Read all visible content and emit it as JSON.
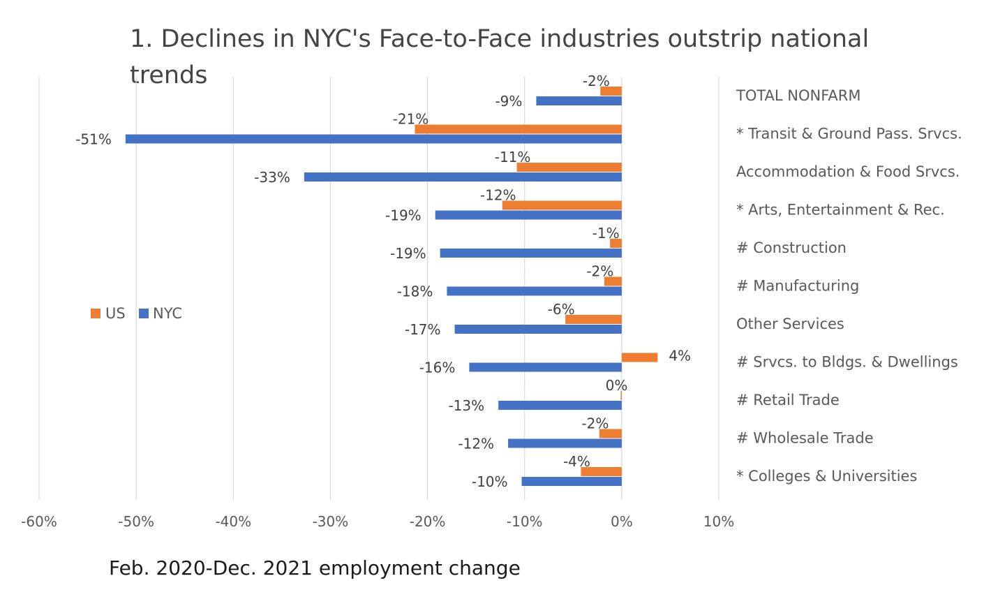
{
  "chart_data": {
    "type": "bar",
    "orientation": "horizontal",
    "title": "1. Declines in NYC's Face-to-Face industries outstrip national trends",
    "xlabel": "Feb. 2020-Dec. 2021  employment change",
    "xlim": [
      -0.6,
      0.1
    ],
    "xticks": [
      -0.6,
      -0.5,
      -0.4,
      -0.3,
      -0.2,
      -0.1,
      0,
      0.1
    ],
    "xtick_labels": [
      "-60%",
      "-50%",
      "-40%",
      "-30%",
      "-20%",
      "-10%",
      "0%",
      "10%"
    ],
    "grid": "vertical",
    "legend_position": "left",
    "categories": [
      "TOTAL NONFARM",
      "* Transit & Ground Pass. Srvcs.",
      "Accommodation & Food Srvcs.",
      "* Arts, Entertainment & Rec.",
      "# Construction",
      "# Manufacturing",
      "Other Services",
      "# Srvcs. to Bldgs. & Dwellings",
      "# Retail Trade",
      "# Wholesale Trade",
      "* Colleges & Universities"
    ],
    "series": [
      {
        "name": "US",
        "color": "#ED7D31",
        "values": [
          -0.022,
          -0.213,
          -0.108,
          -0.123,
          -0.012,
          -0.018,
          -0.058,
          0.037,
          -0.001,
          -0.023,
          -0.042
        ],
        "labels": [
          "-2%",
          "-21%",
          "-11%",
          "-12%",
          "-1%",
          "-2%",
          "-6%",
          "4%",
          "0%",
          "-2%",
          "-4%"
        ]
      },
      {
        "name": "NYC",
        "color": "#4472C4",
        "values": [
          -0.088,
          -0.511,
          -0.327,
          -0.192,
          -0.187,
          -0.18,
          -0.172,
          -0.157,
          -0.127,
          -0.117,
          -0.103
        ],
        "labels": [
          "-9%",
          "-51%",
          "-33%",
          "-19%",
          "-19%",
          "-18%",
          "-17%",
          "-16%",
          "-13%",
          "-12%",
          "-10%"
        ]
      }
    ]
  }
}
